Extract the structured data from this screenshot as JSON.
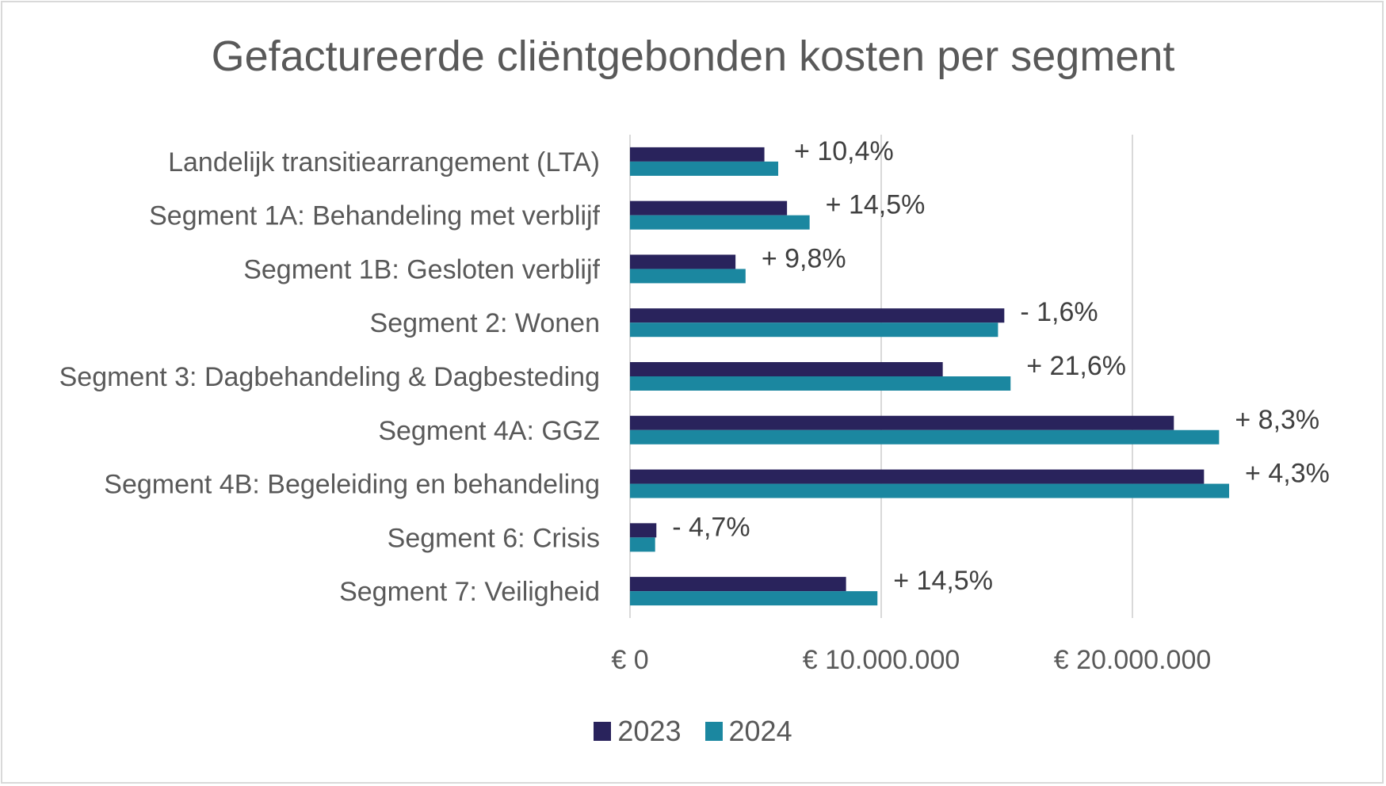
{
  "chart_data": {
    "type": "bar",
    "orientation": "horizontal",
    "title": "Gefactureerde cliëntgebonden kosten per segment",
    "xlabel": "",
    "ylabel": "",
    "xlim": [
      0,
      25000000
    ],
    "grid": true,
    "legend_position": "bottom",
    "categories": [
      "Landelijk transitiearrangement (LTA)",
      "Segment 1A: Behandeling met verblijf",
      "Segment 1B: Gesloten verblijf",
      "Segment 2: Wonen",
      "Segment 3: Dagbehandeling & Dagbesteding",
      "Segment 4A: GGZ",
      "Segment 4B: Begeleiding en behandeling",
      "Segment 6: Crisis",
      "Segment 7: Veiligheid"
    ],
    "series": [
      {
        "name": "2023",
        "color": "#29235c",
        "values": [
          5350000,
          6250000,
          4200000,
          14900000,
          12450000,
          21650000,
          22850000,
          1050000,
          8600000
        ]
      },
      {
        "name": "2024",
        "color": "#1b87a0",
        "values": [
          5900000,
          7150000,
          4600000,
          14650000,
          15150000,
          23450000,
          23850000,
          1000000,
          9850000
        ]
      }
    ],
    "data_labels": [
      "+ 10,4%",
      "+ 14,5%",
      "+ 9,8%",
      "- 1,6%",
      "+ 21,6%",
      "+ 8,3%",
      "+ 4,3%",
      "- 4,7%",
      "+ 14,5%"
    ],
    "x_ticks": [
      0,
      10000000,
      20000000
    ],
    "x_tick_labels": [
      "€ 0",
      "€ 10.000.000",
      "€ 20.000.000"
    ]
  }
}
